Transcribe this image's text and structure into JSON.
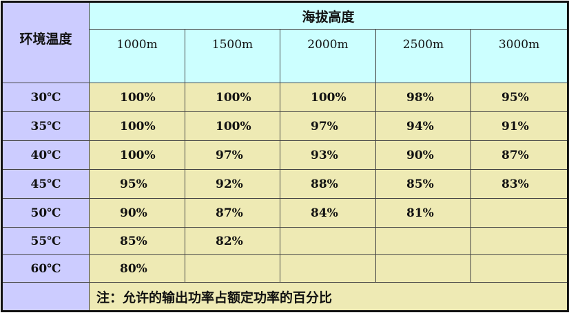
{
  "table": {
    "row_header_label": "环境温度",
    "group_header": "海拔高度",
    "columns": [
      "1000m",
      "1500m",
      "2000m",
      "2500m",
      "3000m"
    ],
    "rows": [
      {
        "temp": "30℃",
        "values": [
          "100%",
          "100%",
          "100%",
          "98%",
          "95%"
        ]
      },
      {
        "temp": "35℃",
        "values": [
          "100%",
          "100%",
          "97%",
          "94%",
          "91%"
        ]
      },
      {
        "temp": "40℃",
        "values": [
          "100%",
          "97%",
          "93%",
          "90%",
          "87%"
        ]
      },
      {
        "temp": "45℃",
        "values": [
          "95%",
          "92%",
          "88%",
          "85%",
          "83%"
        ]
      },
      {
        "temp": "50℃",
        "values": [
          "90%",
          "87%",
          "84%",
          "81%",
          ""
        ]
      },
      {
        "temp": "55℃",
        "values": [
          "85%",
          "82%",
          "",
          "",
          ""
        ]
      },
      {
        "temp": "60℃",
        "values": [
          "80%",
          "",
          "",
          "",
          ""
        ]
      }
    ],
    "note": "注：允许的输出功率占额定功率的百分比"
  },
  "colors": {
    "label_bg": "#ccccff",
    "header_bg": "#ccffff",
    "cell_bg": "#eeeab4"
  }
}
